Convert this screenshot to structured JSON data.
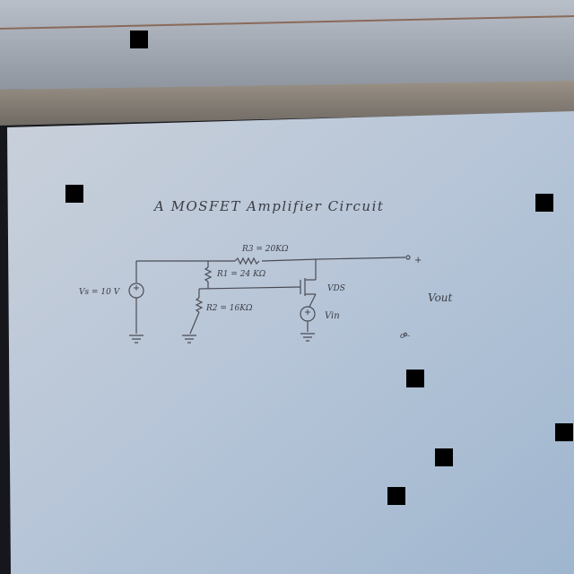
{
  "diagram": {
    "title": "A MOSFET Amplifier Circuit",
    "labels": {
      "r3": "R3 = 20KΩ",
      "r1": "R1 = 24 KΩ",
      "r2": "R2 = 16KΩ",
      "vs": "Vs = 10 V",
      "vds": "VDS",
      "vin": "Vin",
      "vout": "Vout",
      "plus": "+",
      "minus": "o -"
    }
  }
}
